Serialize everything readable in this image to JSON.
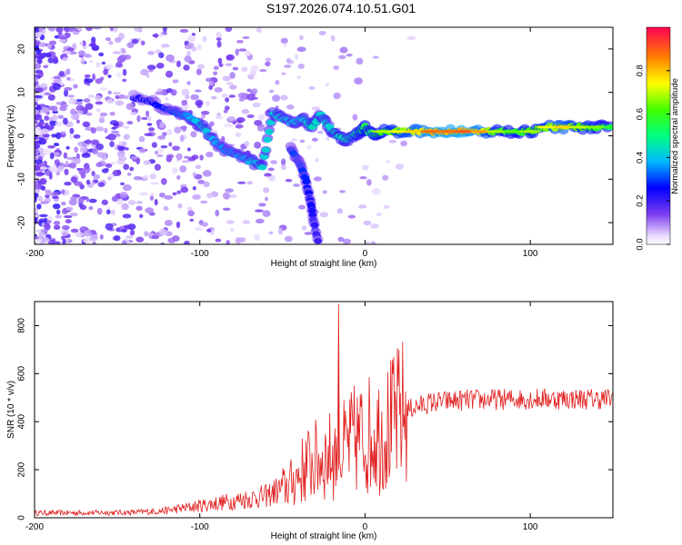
{
  "title": "S197.2026.074.10.51.G01",
  "chart_data": [
    {
      "type": "heatmap",
      "name": "spectrogram",
      "xlabel": "Height of straight line (km)",
      "ylabel": "Frequency (Hz)",
      "xlim": [
        -200,
        150
      ],
      "ylim": [
        -25,
        25
      ],
      "xticks": [
        -200,
        -100,
        0,
        100
      ],
      "xtick_labels": [
        "-200",
        "-100",
        "0",
        "100"
      ],
      "yticks": [
        -20,
        -10,
        0,
        10,
        20
      ],
      "ytick_labels": [
        "-20",
        "-10",
        "0",
        "10",
        "20"
      ],
      "ridge": [
        {
          "x": -140,
          "y": 9,
          "amp": 0.22
        },
        {
          "x": -130,
          "y": 8,
          "amp": 0.25
        },
        {
          "x": -120,
          "y": 6,
          "amp": 0.28
        },
        {
          "x": -112,
          "y": 5,
          "amp": 0.32
        },
        {
          "x": -105,
          "y": 4,
          "amp": 0.38
        },
        {
          "x": -98,
          "y": 2,
          "amp": 0.42
        },
        {
          "x": -92,
          "y": -1,
          "amp": 0.38
        },
        {
          "x": -86,
          "y": -3,
          "amp": 0.36
        },
        {
          "x": -80,
          "y": -4,
          "amp": 0.35
        },
        {
          "x": -74,
          "y": -5,
          "amp": 0.38
        },
        {
          "x": -68,
          "y": -6,
          "amp": 0.4
        },
        {
          "x": -62,
          "y": -7,
          "amp": 0.42
        },
        {
          "x": -56,
          "y": 5,
          "amp": 0.42
        },
        {
          "x": -50,
          "y": 4,
          "amp": 0.42
        },
        {
          "x": -44,
          "y": 3,
          "amp": 0.4
        },
        {
          "x": -38,
          "y": 4,
          "amp": 0.4
        },
        {
          "x": -32,
          "y": 2,
          "amp": 0.45
        },
        {
          "x": -27,
          "y": 5,
          "amp": 0.42
        },
        {
          "x": -22,
          "y": 2,
          "amp": 0.42
        },
        {
          "x": -17,
          "y": 0,
          "amp": 0.45
        },
        {
          "x": -12,
          "y": -1,
          "amp": 0.45
        },
        {
          "x": -7,
          "y": 0,
          "amp": 0.45
        },
        {
          "x": -3,
          "y": 1,
          "amp": 0.5
        },
        {
          "x": 0,
          "y": 2,
          "amp": 0.55
        },
        {
          "x": 5,
          "y": 0,
          "amp": 0.5
        },
        {
          "x": 10,
          "y": 1,
          "amp": 0.6
        },
        {
          "x": 20,
          "y": 1,
          "amp": 0.65
        },
        {
          "x": 30,
          "y": 1,
          "amp": 0.7
        },
        {
          "x": 40,
          "y": 1,
          "amp": 0.8
        },
        {
          "x": 50,
          "y": 1,
          "amp": 0.8
        },
        {
          "x": 60,
          "y": 1,
          "amp": 0.82
        },
        {
          "x": 70,
          "y": 1,
          "amp": 0.75
        },
        {
          "x": 80,
          "y": 1,
          "amp": 0.6
        },
        {
          "x": 90,
          "y": 1,
          "amp": 0.55
        },
        {
          "x": 100,
          "y": 1,
          "amp": 0.6
        },
        {
          "x": 110,
          "y": 2,
          "amp": 0.65
        },
        {
          "x": 120,
          "y": 2,
          "amp": 0.7
        },
        {
          "x": 130,
          "y": 2,
          "amp": 0.62
        },
        {
          "x": 140,
          "y": 2,
          "amp": 0.58
        },
        {
          "x": 150,
          "y": 2,
          "amp": 0.5
        }
      ],
      "branch": [
        {
          "x": -45,
          "y": -3,
          "amp": 0.3
        },
        {
          "x": -40,
          "y": -6,
          "amp": 0.3
        },
        {
          "x": -36,
          "y": -10,
          "amp": 0.28
        },
        {
          "x": -33,
          "y": -15,
          "amp": 0.25
        },
        {
          "x": -31,
          "y": -20,
          "amp": 0.22
        },
        {
          "x": -28,
          "y": -25,
          "amp": 0.2
        }
      ],
      "colorbar": {
        "label": "Normalized spectral amplitude",
        "range": [
          0,
          1
        ],
        "ticks": [
          0.0,
          0.2,
          0.4,
          0.6,
          0.8
        ],
        "tick_labels": [
          "0.0",
          "0.2",
          "0.4",
          "0.6",
          "0.8"
        ]
      }
    },
    {
      "type": "line",
      "name": "snr",
      "xlabel": "Height of straight line (km)",
      "ylabel": "SNR (10 * v/v)",
      "xlim": [
        -200,
        150
      ],
      "ylim": [
        0,
        900
      ],
      "xticks": [
        -200,
        -100,
        0,
        100
      ],
      "xtick_labels": [
        "-200",
        "-100",
        "0",
        "100"
      ],
      "yticks": [
        0,
        200,
        400,
        600,
        800
      ],
      "ytick_labels": [
        "0",
        "200",
        "400",
        "600",
        "800"
      ],
      "line_color": "#e02020",
      "envelope": [
        {
          "x": -200,
          "y": 20
        },
        {
          "x": -140,
          "y": 22
        },
        {
          "x": -120,
          "y": 30
        },
        {
          "x": -100,
          "y": 50
        },
        {
          "x": -80,
          "y": 70
        },
        {
          "x": -60,
          "y": 90
        },
        {
          "x": -45,
          "y": 140
        },
        {
          "x": -35,
          "y": 220
        },
        {
          "x": -25,
          "y": 250
        },
        {
          "x": -15,
          "y": 270
        },
        {
          "x": -5,
          "y": 330
        },
        {
          "x": 5,
          "y": 350
        },
        {
          "x": 15,
          "y": 380
        },
        {
          "x": 25,
          "y": 450
        },
        {
          "x": 40,
          "y": 480
        },
        {
          "x": 60,
          "y": 490
        },
        {
          "x": 100,
          "y": 495
        },
        {
          "x": 150,
          "y": 495
        }
      ],
      "spike": {
        "x": -16,
        "y": 890
      }
    }
  ]
}
